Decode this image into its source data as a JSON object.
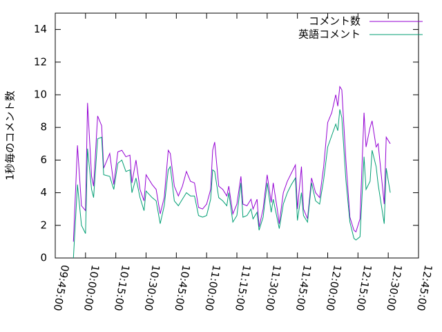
{
  "chart_data": {
    "type": "line",
    "y_label": "1秒毎のコメント数",
    "x": [
      "09:54:00",
      "09:56:00",
      "09:58:00",
      "10:00:00",
      "10:01:00",
      "10:03:00",
      "10:04:00",
      "10:06:00",
      "10:08:00",
      "10:09:00",
      "10:12:00",
      "10:14:00",
      "10:16:00",
      "10:18:00",
      "10:20:00",
      "10:22:00",
      "10:23:00",
      "10:25:00",
      "10:27:00",
      "10:29:00",
      "10:30:00",
      "10:33:00",
      "10:35:00",
      "10:37:00",
      "10:39:00",
      "10:41:00",
      "10:42:00",
      "10:44:00",
      "10:46:00",
      "10:48:00",
      "10:50:00",
      "10:52:00",
      "10:54:00",
      "10:56:00",
      "10:58:00",
      "11:00:00",
      "11:02:00",
      "11:03:00",
      "11:04:00",
      "11:06:00",
      "11:08:00",
      "11:10:00",
      "11:11:00",
      "11:13:00",
      "11:15:00",
      "11:17:00",
      "11:18:00",
      "11:20:00",
      "11:22:00",
      "11:23:00",
      "11:25:00",
      "11:26:00",
      "11:28:00",
      "11:30:00",
      "11:32:00",
      "11:33:00",
      "11:35:00",
      "11:36:00",
      "11:38:00",
      "11:40:00",
      "11:42:00",
      "11:44:00",
      "11:45:00",
      "11:47:00",
      "11:48:00",
      "11:50:00",
      "11:52:00",
      "11:54:00",
      "11:56:00",
      "11:58:00",
      "12:00:00",
      "12:02:00",
      "12:04:00",
      "12:05:00",
      "12:06:00",
      "12:07:00",
      "12:09:00",
      "12:11:00",
      "12:13:00",
      "12:14:00",
      "12:16:00",
      "12:18:00",
      "12:19:00",
      "12:21:00",
      "12:22:00",
      "12:24:00",
      "12:25:00",
      "12:28:00",
      "12:29:00",
      "12:31:00"
    ],
    "series": [
      {
        "name": "コメント数",
        "color": "#9400d3",
        "values": [
          1.0,
          6.9,
          3.2,
          2.9,
          9.5,
          5.0,
          4.4,
          8.7,
          8.1,
          5.5,
          6.4,
          4.5,
          6.5,
          6.6,
          6.2,
          6.3,
          4.6,
          6.0,
          4.2,
          3.5,
          5.1,
          4.5,
          4.2,
          2.7,
          3.7,
          6.6,
          6.4,
          4.4,
          3.8,
          4.4,
          5.3,
          4.7,
          4.6,
          3.1,
          3.0,
          3.3,
          4.2,
          6.6,
          7.1,
          4.4,
          4.2,
          3.8,
          4.4,
          2.7,
          3.3,
          5.0,
          3.3,
          3.2,
          3.6,
          3.0,
          3.6,
          1.9,
          3.0,
          5.1,
          3.4,
          4.6,
          3.0,
          2.1,
          4.0,
          4.7,
          5.2,
          5.7,
          3.0,
          5.6,
          3.0,
          2.4,
          4.9,
          4.0,
          3.7,
          5.6,
          8.3,
          8.9,
          10.0,
          9.3,
          10.5,
          10.3,
          6.0,
          2.5,
          1.7,
          1.6,
          2.4,
          8.9,
          6.8,
          8.0,
          8.4,
          6.8,
          7.0,
          3.3,
          7.4,
          7.0
        ]
      },
      {
        "name": "英語コメント",
        "color": "#009e73",
        "values": [
          0.0,
          4.5,
          2.0,
          1.5,
          6.7,
          4.2,
          3.7,
          7.3,
          7.4,
          5.1,
          5.0,
          4.2,
          5.8,
          6.0,
          5.3,
          5.4,
          4.0,
          4.9,
          3.7,
          2.9,
          4.1,
          3.7,
          3.5,
          2.1,
          3.2,
          5.4,
          5.6,
          3.5,
          3.2,
          3.6,
          4.0,
          3.8,
          3.8,
          2.6,
          2.5,
          2.6,
          3.6,
          5.4,
          5.3,
          3.7,
          3.5,
          3.2,
          4.0,
          2.2,
          2.6,
          4.6,
          2.5,
          2.6,
          3.0,
          2.4,
          2.8,
          1.7,
          2.5,
          4.6,
          2.8,
          3.6,
          2.4,
          1.8,
          3.3,
          4.0,
          4.5,
          4.9,
          2.3,
          4.0,
          2.6,
          2.2,
          4.6,
          3.5,
          3.3,
          4.8,
          6.8,
          7.5,
          8.2,
          7.8,
          9.1,
          8.6,
          4.8,
          2.2,
          1.2,
          1.1,
          1.3,
          6.2,
          4.2,
          4.7,
          6.6,
          5.6,
          4.5,
          2.1,
          5.5,
          4.0
        ]
      }
    ],
    "xlim": [
      "09:45:00",
      "12:45:00"
    ],
    "xticks": [
      "09:45:00",
      "10:00:00",
      "10:15:00",
      "10:30:00",
      "10:45:00",
      "11:00:00",
      "11:15:00",
      "11:30:00",
      "11:45:00",
      "12:00:00",
      "12:15:00",
      "12:30:00",
      "12:45:00"
    ],
    "ylim": [
      0,
      15
    ],
    "yticks": [
      0,
      2,
      4,
      6,
      8,
      10,
      12,
      14
    ],
    "legend": "top-right"
  }
}
